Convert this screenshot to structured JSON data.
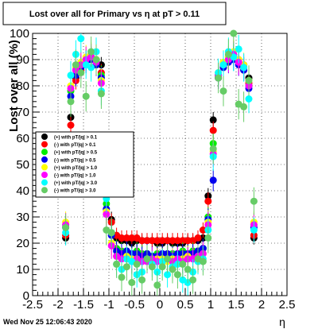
{
  "chart_data": {
    "type": "scatter",
    "title": "Lost over all for Primary vs   η at pT > 0.11",
    "xlabel": "η",
    "ylabel": "Lost over all (%)",
    "xlim": [
      -2.5,
      2.5
    ],
    "ylim": [
      0,
      100
    ],
    "x_ticks": [
      "-2.5",
      "-2",
      "-1.5",
      "-1",
      "-0.5",
      "0",
      "0.5",
      "1",
      "1.5",
      "2",
      "2.5"
    ],
    "y_ticks": [
      "0",
      "10",
      "20",
      "30",
      "40",
      "50",
      "60",
      "70",
      "80",
      "90",
      "100"
    ],
    "grid": true,
    "legend_position": "left-middle",
    "timestamp": "Wed Nov 25 12:06:43 2020",
    "series": [
      {
        "name": "(+) with pT/|q| > 0.1",
        "color": "#000000",
        "points": [
          [
            -1.85,
            22
          ],
          [
            -1.75,
            68
          ],
          [
            -1.65,
            83
          ],
          [
            -1.55,
            87
          ],
          [
            -1.45,
            90
          ],
          [
            -1.35,
            92
          ],
          [
            -1.25,
            90
          ],
          [
            -1.15,
            88
          ],
          [
            -1.05,
            45
          ],
          [
            -0.95,
            29
          ],
          [
            -0.85,
            22
          ],
          [
            -0.75,
            21
          ],
          [
            -0.65,
            21
          ],
          [
            -0.55,
            20
          ],
          [
            -0.45,
            21
          ],
          [
            -0.35,
            21
          ],
          [
            -0.25,
            21
          ],
          [
            -0.15,
            21
          ],
          [
            -0.05,
            20
          ],
          [
            0.05,
            20
          ],
          [
            0.15,
            21
          ],
          [
            0.25,
            20
          ],
          [
            0.35,
            20
          ],
          [
            0.45,
            20
          ],
          [
            0.55,
            21
          ],
          [
            0.65,
            21
          ],
          [
            0.75,
            21
          ],
          [
            0.85,
            22
          ],
          [
            0.95,
            38
          ],
          [
            1.05,
            67
          ],
          [
            1.15,
            84
          ],
          [
            1.25,
            88
          ],
          [
            1.35,
            91
          ],
          [
            1.45,
            92
          ],
          [
            1.55,
            90
          ],
          [
            1.65,
            88
          ],
          [
            1.75,
            83
          ],
          [
            1.85,
            22
          ]
        ]
      },
      {
        "name": "(-) with pT/|q| > 0.1",
        "color": "#ff0000",
        "points": [
          [
            -1.85,
            23
          ],
          [
            -1.75,
            65
          ],
          [
            -1.65,
            82
          ],
          [
            -1.55,
            86
          ],
          [
            -1.45,
            89
          ],
          [
            -1.35,
            91
          ],
          [
            -1.25,
            88
          ],
          [
            -1.15,
            85
          ],
          [
            -1.05,
            40
          ],
          [
            -0.95,
            28
          ],
          [
            -0.85,
            23
          ],
          [
            -0.75,
            22
          ],
          [
            -0.65,
            22
          ],
          [
            -0.55,
            22
          ],
          [
            -0.45,
            22
          ],
          [
            -0.35,
            21
          ],
          [
            -0.25,
            21
          ],
          [
            -0.15,
            21
          ],
          [
            -0.05,
            21
          ],
          [
            0.05,
            21
          ],
          [
            0.15,
            21
          ],
          [
            0.25,
            21
          ],
          [
            0.35,
            21
          ],
          [
            0.45,
            21
          ],
          [
            0.55,
            21
          ],
          [
            0.65,
            21
          ],
          [
            0.75,
            22
          ],
          [
            0.85,
            25
          ],
          [
            0.95,
            36
          ],
          [
            1.05,
            63
          ],
          [
            1.15,
            83
          ],
          [
            1.25,
            87
          ],
          [
            1.35,
            90
          ],
          [
            1.45,
            91
          ],
          [
            1.55,
            89
          ],
          [
            1.65,
            86
          ],
          [
            1.75,
            81
          ],
          [
            1.85,
            23
          ]
        ]
      },
      {
        "name": "(+) with pT/|q| > 0.5",
        "color": "#00ee00",
        "points": [
          [
            -1.85,
            27
          ],
          [
            -1.75,
            78
          ],
          [
            -1.65,
            86
          ],
          [
            -1.55,
            88
          ],
          [
            -1.45,
            90
          ],
          [
            -1.35,
            91
          ],
          [
            -1.25,
            90
          ],
          [
            -1.15,
            84
          ],
          [
            -1.05,
            35
          ],
          [
            -0.95,
            24
          ],
          [
            -0.85,
            18
          ],
          [
            -0.75,
            17
          ],
          [
            -0.65,
            17
          ],
          [
            -0.55,
            16
          ],
          [
            -0.45,
            17
          ],
          [
            -0.35,
            16
          ],
          [
            -0.25,
            16
          ],
          [
            -0.15,
            15
          ],
          [
            -0.05,
            16
          ],
          [
            0.05,
            16
          ],
          [
            0.15,
            15
          ],
          [
            0.25,
            16
          ],
          [
            0.35,
            16
          ],
          [
            0.45,
            17
          ],
          [
            0.55,
            16
          ],
          [
            0.65,
            17
          ],
          [
            0.75,
            17
          ],
          [
            0.85,
            18
          ],
          [
            0.95,
            30
          ],
          [
            1.05,
            58
          ],
          [
            1.15,
            84
          ],
          [
            1.25,
            88
          ],
          [
            1.35,
            90
          ],
          [
            1.45,
            92
          ],
          [
            1.55,
            89
          ],
          [
            1.65,
            87
          ],
          [
            1.75,
            80
          ],
          [
            1.85,
            27
          ]
        ]
      },
      {
        "name": "(-) with pT/|q| > 0.5",
        "color": "#0000ee",
        "points": [
          [
            -1.85,
            26
          ],
          [
            -1.75,
            76
          ],
          [
            -1.65,
            84
          ],
          [
            -1.55,
            87
          ],
          [
            -1.45,
            89
          ],
          [
            -1.35,
            90
          ],
          [
            -1.25,
            88
          ],
          [
            -1.15,
            83
          ],
          [
            -1.05,
            33
          ],
          [
            -0.95,
            23
          ],
          [
            -0.85,
            17
          ],
          [
            -0.75,
            16
          ],
          [
            -0.65,
            17
          ],
          [
            -0.55,
            16
          ],
          [
            -0.45,
            16
          ],
          [
            -0.35,
            15
          ],
          [
            -0.25,
            16
          ],
          [
            -0.15,
            15
          ],
          [
            -0.05,
            15
          ],
          [
            0.05,
            16
          ],
          [
            0.15,
            16
          ],
          [
            0.25,
            15
          ],
          [
            0.35,
            16
          ],
          [
            0.45,
            16
          ],
          [
            0.55,
            16
          ],
          [
            0.65,
            16
          ],
          [
            0.75,
            17
          ],
          [
            0.85,
            18
          ],
          [
            0.95,
            29
          ],
          [
            1.05,
            44
          ],
          [
            1.15,
            83
          ],
          [
            1.25,
            87
          ],
          [
            1.35,
            89
          ],
          [
            1.45,
            90
          ],
          [
            1.55,
            88
          ],
          [
            1.65,
            86
          ],
          [
            1.75,
            79
          ],
          [
            1.85,
            26
          ]
        ]
      },
      {
        "name": "(+) with pT/|q| > 1.0",
        "color": "#ffff00",
        "points": [
          [
            -1.85,
            28
          ],
          [
            -1.75,
            80
          ],
          [
            -1.65,
            87
          ],
          [
            -1.55,
            89
          ],
          [
            -1.45,
            91
          ],
          [
            -1.35,
            92
          ],
          [
            -1.25,
            90
          ],
          [
            -1.15,
            82
          ],
          [
            -1.05,
            32
          ],
          [
            -0.95,
            20
          ],
          [
            -0.85,
            15
          ],
          [
            -0.75,
            14
          ],
          [
            -0.65,
            15
          ],
          [
            -0.55,
            14
          ],
          [
            -0.45,
            14
          ],
          [
            -0.35,
            13
          ],
          [
            -0.25,
            14
          ],
          [
            -0.15,
            13
          ],
          [
            -0.05,
            14
          ],
          [
            0.05,
            14
          ],
          [
            0.15,
            13
          ],
          [
            0.25,
            14
          ],
          [
            0.35,
            14
          ],
          [
            0.45,
            14
          ],
          [
            0.55,
            15
          ],
          [
            0.65,
            14
          ],
          [
            0.75,
            15
          ],
          [
            0.85,
            16
          ],
          [
            0.95,
            28
          ],
          [
            1.05,
            55
          ],
          [
            1.15,
            85
          ],
          [
            1.25,
            89
          ],
          [
            1.35,
            91
          ],
          [
            1.45,
            93
          ],
          [
            1.55,
            90
          ],
          [
            1.65,
            88
          ],
          [
            1.75,
            82
          ],
          [
            1.85,
            28
          ]
        ]
      },
      {
        "name": "(-) with pT/|q| > 1.0",
        "color": "#ff00ff",
        "points": [
          [
            -1.85,
            27
          ],
          [
            -1.75,
            79
          ],
          [
            -1.65,
            86
          ],
          [
            -1.55,
            88
          ],
          [
            -1.45,
            90
          ],
          [
            -1.35,
            91
          ],
          [
            -1.25,
            89
          ],
          [
            -1.15,
            81
          ],
          [
            -1.05,
            31
          ],
          [
            -0.95,
            19
          ],
          [
            -0.85,
            15
          ],
          [
            -0.75,
            14
          ],
          [
            -0.65,
            14
          ],
          [
            -0.55,
            13
          ],
          [
            -0.45,
            14
          ],
          [
            -0.35,
            13
          ],
          [
            -0.25,
            13
          ],
          [
            -0.15,
            14
          ],
          [
            -0.05,
            13
          ],
          [
            0.05,
            13
          ],
          [
            0.15,
            14
          ],
          [
            0.25,
            13
          ],
          [
            0.35,
            14
          ],
          [
            0.45,
            13
          ],
          [
            0.55,
            14
          ],
          [
            0.65,
            14
          ],
          [
            0.75,
            15
          ],
          [
            0.85,
            16
          ],
          [
            0.95,
            27
          ],
          [
            1.05,
            54
          ],
          [
            1.15,
            84
          ],
          [
            1.25,
            88
          ],
          [
            1.35,
            90
          ],
          [
            1.45,
            92
          ],
          [
            1.55,
            89
          ],
          [
            1.65,
            87
          ],
          [
            1.75,
            80
          ],
          [
            1.85,
            27
          ]
        ]
      },
      {
        "name": "(+) with pT/|q| > 3.0",
        "color": "#00ffff",
        "points": [
          [
            -1.85,
            24
          ],
          [
            -1.75,
            84
          ],
          [
            -1.65,
            92
          ],
          [
            -1.55,
            98
          ],
          [
            -1.45,
            88
          ],
          [
            -1.35,
            87
          ],
          [
            -1.25,
            93
          ],
          [
            -1.15,
            78
          ],
          [
            -1.05,
            37
          ],
          [
            -0.95,
            24
          ],
          [
            -0.85,
            12
          ],
          [
            -0.75,
            10
          ],
          [
            -0.65,
            14
          ],
          [
            -0.55,
            13
          ],
          [
            -0.45,
            8
          ],
          [
            -0.35,
            9
          ],
          [
            -0.25,
            14
          ],
          [
            -0.15,
            12
          ],
          [
            -0.05,
            9
          ],
          [
            0.05,
            13
          ],
          [
            0.15,
            8
          ],
          [
            0.25,
            11
          ],
          [
            0.35,
            12
          ],
          [
            0.45,
            6
          ],
          [
            0.55,
            5
          ],
          [
            0.65,
            9
          ],
          [
            0.75,
            13
          ],
          [
            0.85,
            14
          ],
          [
            0.95,
            25
          ],
          [
            1.05,
            53
          ],
          [
            1.15,
            85
          ],
          [
            1.25,
            88
          ],
          [
            1.35,
            93
          ],
          [
            1.45,
            91
          ],
          [
            1.55,
            94
          ],
          [
            1.65,
            87
          ],
          [
            1.75,
            75
          ],
          [
            1.85,
            25
          ]
        ]
      },
      {
        "name": "(-) with pT/|q| > 3.0",
        "color": "#66cc66",
        "points": [
          [
            -1.85,
            26
          ],
          [
            -1.75,
            74
          ],
          [
            -1.65,
            88
          ],
          [
            -1.55,
            85
          ],
          [
            -1.45,
            76
          ],
          [
            -1.35,
            93
          ],
          [
            -1.25,
            90
          ],
          [
            -1.15,
            77
          ],
          [
            -1.05,
            25
          ],
          [
            -0.95,
            24
          ],
          [
            -0.85,
            12
          ],
          [
            -0.75,
            7
          ],
          [
            -0.65,
            11
          ],
          [
            -0.55,
            5
          ],
          [
            -0.45,
            12
          ],
          [
            -0.35,
            6
          ],
          [
            -0.25,
            14
          ],
          [
            -0.15,
            11
          ],
          [
            -0.05,
            4
          ],
          [
            0.05,
            11
          ],
          [
            0.15,
            14
          ],
          [
            0.25,
            10
          ],
          [
            0.35,
            8
          ],
          [
            0.45,
            12
          ],
          [
            0.55,
            10
          ],
          [
            0.65,
            6
          ],
          [
            0.75,
            14
          ],
          [
            0.85,
            13
          ],
          [
            0.95,
            22
          ],
          [
            1.05,
            56
          ],
          [
            1.15,
            83
          ],
          [
            1.25,
            78
          ],
          [
            1.35,
            92
          ],
          [
            1.45,
            100
          ],
          [
            1.55,
            73
          ],
          [
            1.65,
            72
          ],
          [
            1.75,
            82
          ],
          [
            1.85,
            36
          ]
        ]
      }
    ]
  }
}
